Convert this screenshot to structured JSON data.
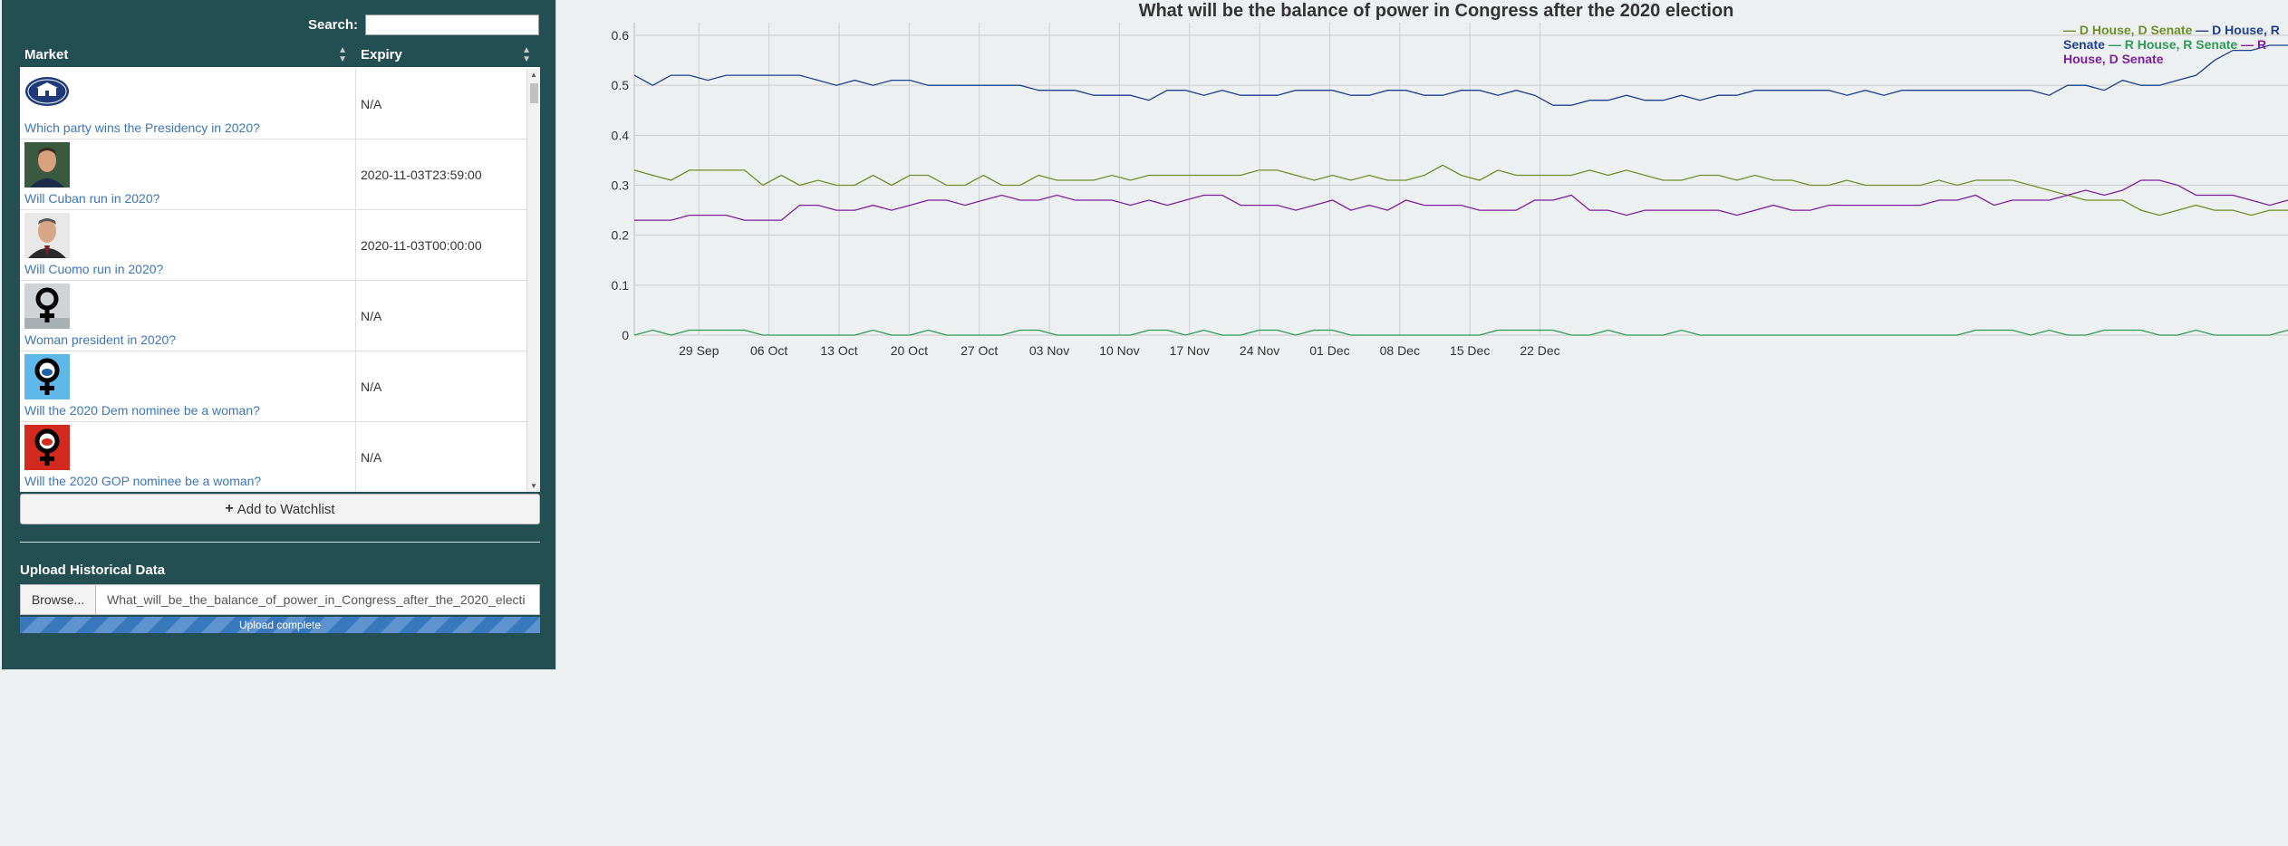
{
  "sidebar": {
    "search": {
      "label": "Search:",
      "value": "",
      "placeholder": ""
    },
    "table": {
      "headers": {
        "market": "Market",
        "expiry": "Expiry"
      },
      "rows": [
        {
          "market": "Which party wins the Presidency in 2020?",
          "expiry": "N/A",
          "icon": "white-house-seal-icon"
        },
        {
          "market": "Will Cuban run in 2020?",
          "expiry": "2020-11-03T23:59:00",
          "icon": "cuban-photo"
        },
        {
          "market": "Will Cuomo run in 2020?",
          "expiry": "2020-11-03T00:00:00",
          "icon": "cuomo-photo"
        },
        {
          "market": "Woman president in 2020?",
          "expiry": "N/A",
          "icon": "female-symbol-icon"
        },
        {
          "market": "Will the 2020 Dem nominee be a woman?",
          "expiry": "N/A",
          "icon": "female-symbol-donkey-icon"
        },
        {
          "market": "Will the 2020 GOP nominee be a woman?",
          "expiry": "N/A",
          "icon": "female-symbol-elephant-icon"
        }
      ]
    },
    "watchlist_label": "Add to Watchlist",
    "upload": {
      "title": "Upload Historical Data",
      "browse_label": "Browse...",
      "file_name": "What_will_be_the_balance_of_power_in_Congress_after_the_2020_electi",
      "progress_label": "Upload complete",
      "progress": 1.0
    }
  },
  "chart_data": {
    "type": "line",
    "title": "What will be the balance of power in Congress after the 2020 election",
    "x_ticks": [
      "29 Sep",
      "06 Oct",
      "13 Oct",
      "20 Oct",
      "27 Oct",
      "03 Nov",
      "10 Nov",
      "17 Nov",
      "24 Nov",
      "01 Dec",
      "08 Dec",
      "15 Dec",
      "22 Dec"
    ],
    "y_ticks": [
      "0",
      "0.1",
      "0.2",
      "0.3",
      "0.4",
      "0.5",
      "0.6"
    ],
    "ylim": [
      0,
      0.6
    ],
    "grid": true,
    "legend_position": "top-right",
    "series": [
      {
        "name": "D House, D Senate",
        "color": "#6f8e2a",
        "values": [
          0.33,
          0.32,
          0.31,
          0.33,
          0.33,
          0.33,
          0.33,
          0.3,
          0.32,
          0.3,
          0.31,
          0.3,
          0.3,
          0.32,
          0.3,
          0.32,
          0.32,
          0.3,
          0.3,
          0.32,
          0.3,
          0.3,
          0.32,
          0.31,
          0.31,
          0.31,
          0.32,
          0.31,
          0.32,
          0.32,
          0.32,
          0.32,
          0.32,
          0.32,
          0.33,
          0.33,
          0.32,
          0.31,
          0.32,
          0.31,
          0.32,
          0.31,
          0.31,
          0.32,
          0.34,
          0.32,
          0.31,
          0.33,
          0.32,
          0.32,
          0.32,
          0.32,
          0.33,
          0.32,
          0.33,
          0.32,
          0.31,
          0.31,
          0.32,
          0.32,
          0.31,
          0.32,
          0.31,
          0.31,
          0.3,
          0.3,
          0.31,
          0.3,
          0.3,
          0.3,
          0.3,
          0.31,
          0.3,
          0.31,
          0.31,
          0.31,
          0.3,
          0.29,
          0.28,
          0.27,
          0.27,
          0.27,
          0.25,
          0.24,
          0.25,
          0.26,
          0.25,
          0.25,
          0.24,
          0.25,
          0.25
        ]
      },
      {
        "name": "D House, R Senate",
        "color": "#1f3f8f",
        "values": [
          0.52,
          0.5,
          0.52,
          0.52,
          0.51,
          0.52,
          0.52,
          0.52,
          0.52,
          0.52,
          0.51,
          0.5,
          0.51,
          0.5,
          0.51,
          0.51,
          0.5,
          0.5,
          0.5,
          0.5,
          0.5,
          0.5,
          0.49,
          0.49,
          0.49,
          0.48,
          0.48,
          0.48,
          0.47,
          0.49,
          0.49,
          0.48,
          0.49,
          0.48,
          0.48,
          0.48,
          0.49,
          0.49,
          0.49,
          0.48,
          0.48,
          0.49,
          0.49,
          0.48,
          0.48,
          0.49,
          0.49,
          0.48,
          0.49,
          0.48,
          0.46,
          0.46,
          0.47,
          0.47,
          0.48,
          0.47,
          0.47,
          0.48,
          0.47,
          0.48,
          0.48,
          0.49,
          0.49,
          0.49,
          0.49,
          0.49,
          0.48,
          0.49,
          0.48,
          0.49,
          0.49,
          0.49,
          0.49,
          0.49,
          0.49,
          0.49,
          0.49,
          0.48,
          0.5,
          0.5,
          0.49,
          0.51,
          0.5,
          0.5,
          0.51,
          0.52,
          0.55,
          0.57,
          0.57,
          0.58,
          0.58
        ]
      },
      {
        "name": "R House, R Senate",
        "color": "#2e9a57",
        "values": [
          0.0,
          0.01,
          0.0,
          0.01,
          0.01,
          0.01,
          0.01,
          0.0,
          0.0,
          0.0,
          0.0,
          0.0,
          0.0,
          0.01,
          0.0,
          0.0,
          0.01,
          0.0,
          0.0,
          0.0,
          0.0,
          0.01,
          0.01,
          0.0,
          0.0,
          0.0,
          0.0,
          0.0,
          0.01,
          0.01,
          0.0,
          0.01,
          0.0,
          0.0,
          0.01,
          0.01,
          0.0,
          0.01,
          0.01,
          0.0,
          0.0,
          0.0,
          0.0,
          0.0,
          0.0,
          0.0,
          0.0,
          0.01,
          0.01,
          0.01,
          0.01,
          0.0,
          0.0,
          0.01,
          0.0,
          0.0,
          0.0,
          0.01,
          0.0,
          0.0,
          0.0,
          0.0,
          0.0,
          0.0,
          0.0,
          0.0,
          0.0,
          0.0,
          0.0,
          0.0,
          0.0,
          0.0,
          0.0,
          0.01,
          0.01,
          0.01,
          0.0,
          0.01,
          0.0,
          0.0,
          0.01,
          0.01,
          0.01,
          0.0,
          0.0,
          0.01,
          0.0,
          0.0,
          0.0,
          0.0,
          0.01
        ]
      },
      {
        "name": "R House, D Senate",
        "color": "#7d1f9e",
        "values": [
          0.23,
          0.23,
          0.23,
          0.24,
          0.24,
          0.24,
          0.23,
          0.23,
          0.23,
          0.26,
          0.26,
          0.25,
          0.25,
          0.26,
          0.25,
          0.26,
          0.27,
          0.27,
          0.26,
          0.27,
          0.28,
          0.27,
          0.27,
          0.28,
          0.27,
          0.27,
          0.27,
          0.26,
          0.27,
          0.26,
          0.27,
          0.28,
          0.28,
          0.26,
          0.26,
          0.26,
          0.25,
          0.26,
          0.27,
          0.25,
          0.26,
          0.25,
          0.27,
          0.26,
          0.26,
          0.26,
          0.25,
          0.25,
          0.25,
          0.27,
          0.27,
          0.28,
          0.25,
          0.25,
          0.24,
          0.25,
          0.25,
          0.25,
          0.25,
          0.25,
          0.24,
          0.25,
          0.26,
          0.25,
          0.25,
          0.26,
          0.26,
          0.26,
          0.26,
          0.26,
          0.26,
          0.27,
          0.27,
          0.28,
          0.26,
          0.27,
          0.27,
          0.27,
          0.28,
          0.29,
          0.28,
          0.29,
          0.31,
          0.31,
          0.3,
          0.28,
          0.28,
          0.28,
          0.27,
          0.26,
          0.27
        ]
      }
    ]
  }
}
